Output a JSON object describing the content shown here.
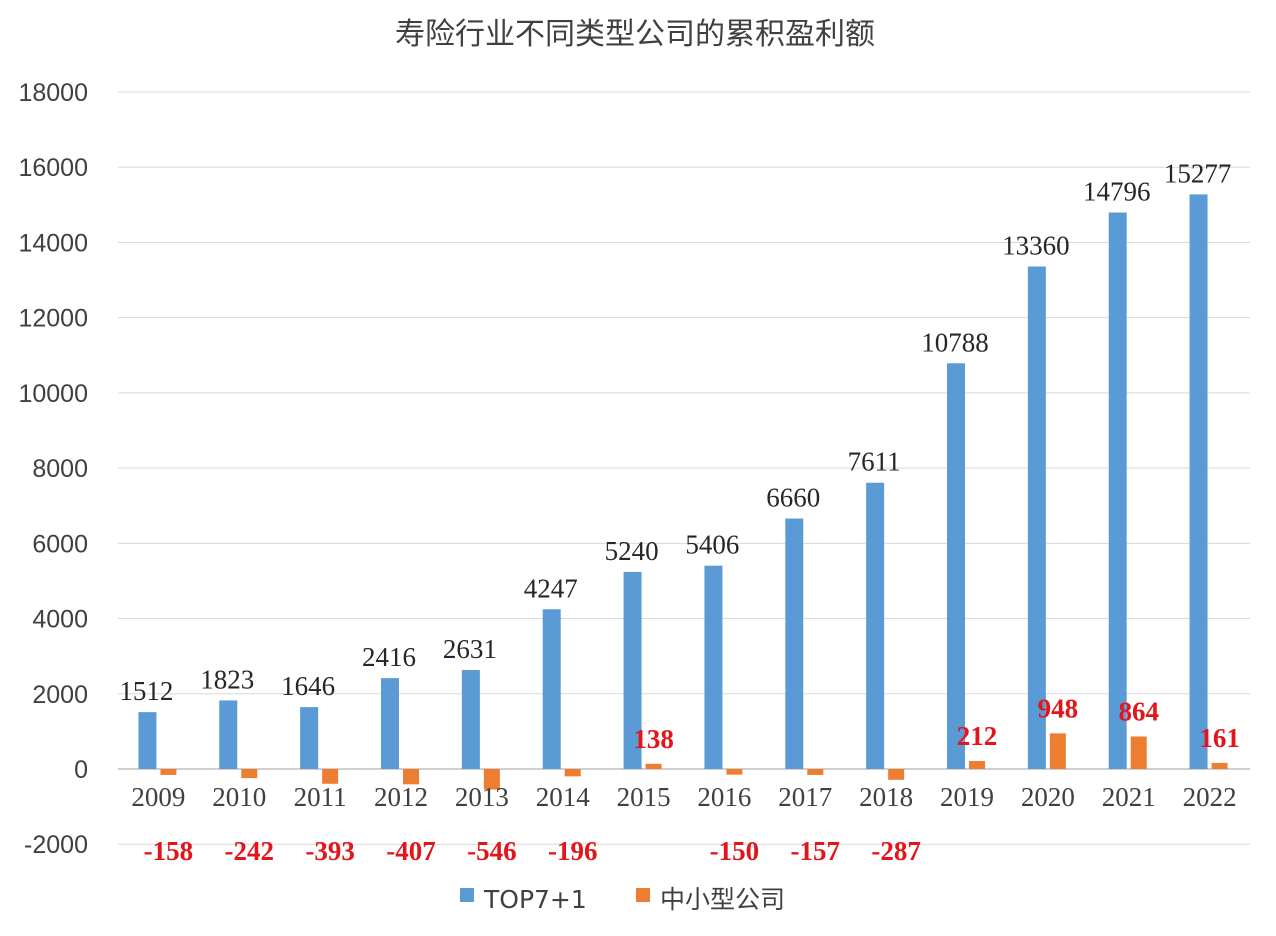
{
  "chart_data": {
    "type": "bar",
    "title": "寿险行业不同类型公司的累积盈利额",
    "categories": [
      "2009",
      "2010",
      "2011",
      "2012",
      "2013",
      "2014",
      "2015",
      "2016",
      "2017",
      "2018",
      "2019",
      "2020",
      "2021",
      "2022"
    ],
    "series": [
      {
        "name": "TOP7+1",
        "color": "#5b9bd5",
        "values": [
          1512,
          1823,
          1646,
          2416,
          2631,
          4247,
          5240,
          5406,
          6660,
          7611,
          10788,
          13360,
          14796,
          15277
        ]
      },
      {
        "name": "中小型公司",
        "color": "#ed7d31",
        "label_color": "#e3151a",
        "values": [
          -158,
          -242,
          -393,
          -407,
          -546,
          -196,
          138,
          -150,
          -157,
          -287,
          212,
          948,
          864,
          161
        ]
      }
    ],
    "ylim": [
      -2000,
      18000
    ],
    "yticks": [
      -2000,
      0,
      2000,
      4000,
      6000,
      8000,
      10000,
      12000,
      14000,
      16000,
      18000
    ],
    "grid": true,
    "legend": "bottom",
    "xlabel": "",
    "ylabel": ""
  }
}
